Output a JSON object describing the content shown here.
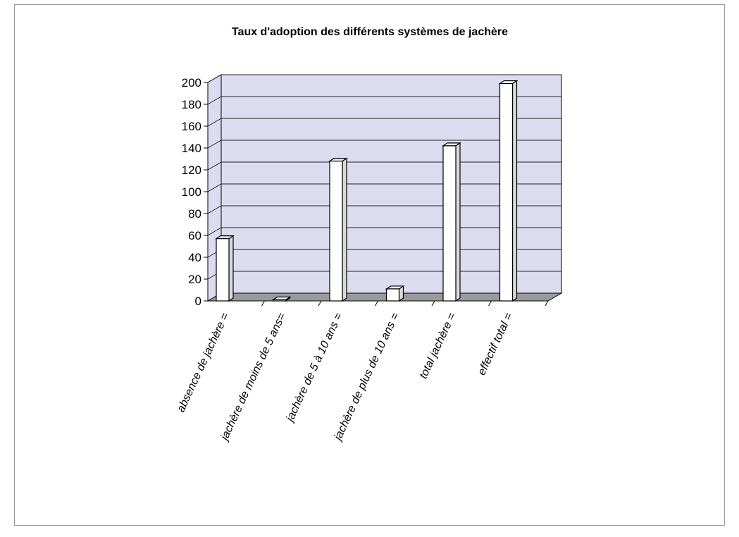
{
  "chart_data": {
    "type": "bar",
    "title": "Taux d'adoption des différents systèmes de jachère",
    "xlabel": "",
    "ylabel": "",
    "categories": [
      "absence de jachère =",
      "jachère de moins de 5 ans=",
      "jachère de 5 à 10 ans =",
      "jachère de plus de 10 ans =",
      "total jachère =",
      "effectif total ="
    ],
    "values": [
      57,
      1,
      128,
      11,
      142,
      199
    ],
    "ylim": [
      0,
      200
    ],
    "yticks": [
      0,
      20,
      40,
      60,
      80,
      100,
      120,
      140,
      160,
      180,
      200
    ],
    "grid": true,
    "legend": "none",
    "colors": {
      "bar_face": "#ffffff",
      "bar_side": "#d9d9d9",
      "bar_top": "#eeeeee",
      "back_wall": "#dcdcf0",
      "floor": "#9a9a9a",
      "gridline": "#222222"
    }
  }
}
